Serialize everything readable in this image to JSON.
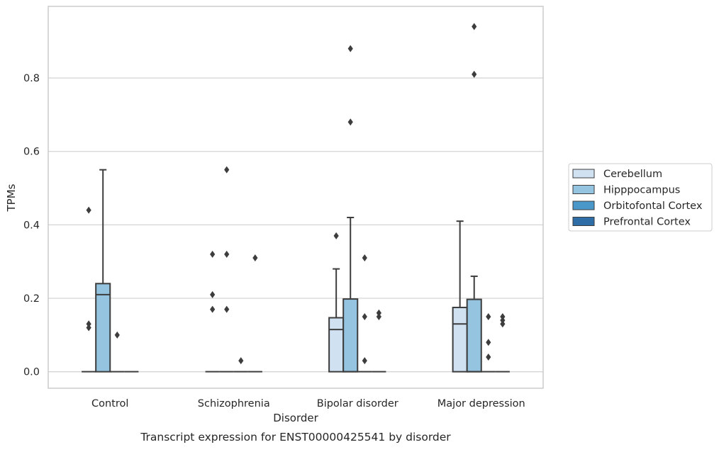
{
  "chart_data": {
    "type": "boxplot",
    "title": "Transcript expression for ENST00000425541 by disorder",
    "xlabel": "Disorder",
    "ylabel": "TPMs",
    "ylim": [
      -0.045,
      0.995
    ],
    "yticks": [
      "0.0",
      "0.2",
      "0.4",
      "0.6",
      "0.8"
    ],
    "grid": "horizontal",
    "legend_position": "right",
    "categories": [
      "Control",
      "Schizophrenia",
      "Bipolar disorder",
      "Major depression"
    ],
    "series": [
      {
        "name": "Cerebellum",
        "color": "#d0e1f2",
        "boxes": [
          {
            "q1": 0,
            "median": 0,
            "q3": 0,
            "whisker_low": 0,
            "whisker_high": 0,
            "outliers": [
              0.44,
              0.13,
              0.12
            ]
          },
          {
            "q1": 0,
            "median": 0,
            "q3": 0,
            "whisker_low": 0,
            "whisker_high": 0,
            "outliers": [
              0.32,
              0.21,
              0.17
            ]
          },
          {
            "q1": 0,
            "median": 0.115,
            "q3": 0.147,
            "whisker_low": 0,
            "whisker_high": 0.28,
            "outliers": [
              0.37
            ]
          },
          {
            "q1": 0,
            "median": 0.13,
            "q3": 0.175,
            "whisker_low": 0,
            "whisker_high": 0.41,
            "outliers": []
          }
        ]
      },
      {
        "name": "Hipppocampus",
        "color": "#94c4df",
        "boxes": [
          {
            "q1": 0,
            "median": 0.21,
            "q3": 0.24,
            "whisker_low": 0,
            "whisker_high": 0.55,
            "outliers": []
          },
          {
            "q1": 0,
            "median": 0,
            "q3": 0,
            "whisker_low": 0,
            "whisker_high": 0,
            "outliers": [
              0.55,
              0.32,
              0.17
            ]
          },
          {
            "q1": 0,
            "median": 0,
            "q3": 0.198,
            "whisker_low": 0,
            "whisker_high": 0.42,
            "outliers": [
              0.88,
              0.68
            ]
          },
          {
            "q1": 0,
            "median": 0,
            "q3": 0.197,
            "whisker_low": 0,
            "whisker_high": 0.26,
            "outliers": [
              0.94,
              0.81
            ]
          }
        ]
      },
      {
        "name": "Orbitofontal Cortex",
        "color": "#4a98c9",
        "boxes": [
          {
            "q1": 0,
            "median": 0,
            "q3": 0,
            "whisker_low": 0,
            "whisker_high": 0,
            "outliers": [
              0.1
            ]
          },
          {
            "q1": 0,
            "median": 0,
            "q3": 0,
            "whisker_low": 0,
            "whisker_high": 0,
            "outliers": [
              0.03
            ]
          },
          {
            "q1": 0,
            "median": 0,
            "q3": 0,
            "whisker_low": 0,
            "whisker_high": 0,
            "outliers": [
              0.31,
              0.15,
              0.03
            ]
          },
          {
            "q1": 0,
            "median": 0,
            "q3": 0,
            "whisker_low": 0,
            "whisker_high": 0,
            "outliers": [
              0.15,
              0.08,
              0.04
            ]
          }
        ]
      },
      {
        "name": "Prefrontal Cortex",
        "color": "#2e6da6",
        "boxes": [
          {
            "q1": 0,
            "median": 0,
            "q3": 0,
            "whisker_low": 0,
            "whisker_high": 0,
            "outliers": []
          },
          {
            "q1": 0,
            "median": 0,
            "q3": 0,
            "whisker_low": 0,
            "whisker_high": 0,
            "outliers": [
              0.31
            ]
          },
          {
            "q1": 0,
            "median": 0,
            "q3": 0,
            "whisker_low": 0,
            "whisker_high": 0,
            "outliers": [
              0.16,
              0.15
            ]
          },
          {
            "q1": 0,
            "median": 0,
            "q3": 0,
            "whisker_low": 0,
            "whisker_high": 0,
            "outliers": [
              0.15,
              0.14,
              0.13
            ]
          }
        ]
      }
    ]
  }
}
